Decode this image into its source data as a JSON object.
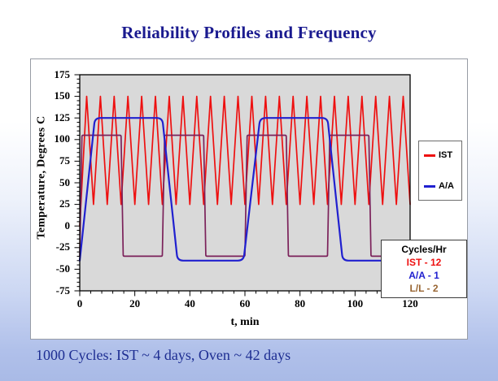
{
  "slide": {
    "title": "Reliability Profiles and Frequency",
    "footer": "1000 Cycles: IST ~ 4 days, Oven ~ 42 days",
    "colors": {
      "title_text": "#1a1a8f",
      "footer_text": "#1d2d92",
      "background_bottom": "#a9bae6",
      "background_top": "#ffffff"
    }
  },
  "chart_data": {
    "type": "line",
    "title": "",
    "xlabel": "t, min",
    "ylabel": "Temperature, Degrees C",
    "xlim": [
      0,
      120
    ],
    "ylim": [
      -75,
      175
    ],
    "x_ticks": [
      0,
      20,
      40,
      60,
      80,
      100,
      120
    ],
    "x_tick_labels": [
      "0",
      "20",
      "40",
      "60",
      "80",
      "100",
      "120"
    ],
    "y_ticks": [
      175,
      150,
      125,
      100,
      75,
      50,
      25,
      0,
      -25,
      -50,
      -75
    ],
    "y_tick_labels": [
      "175",
      "150",
      "125",
      "100",
      "75",
      "50",
      "25",
      "0",
      "-25",
      "-50",
      "-75"
    ],
    "x_minor_step": 4,
    "y_minor_step": 5,
    "grid": "off",
    "plot_bg": "#d9d9d9",
    "legend_position": "right-outside",
    "series": [
      {
        "name": "IST",
        "color": "#ee1010",
        "width": 1.7,
        "corner_radius": 0,
        "points": [
          [
            0,
            0
          ],
          [
            2.5,
            150
          ],
          [
            5,
            25
          ],
          [
            7.5,
            150
          ],
          [
            10,
            25
          ],
          [
            12.5,
            150
          ],
          [
            15,
            25
          ],
          [
            17.5,
            150
          ],
          [
            20,
            25
          ],
          [
            22.5,
            150
          ],
          [
            25,
            25
          ],
          [
            27.5,
            150
          ],
          [
            30,
            25
          ],
          [
            32.5,
            150
          ],
          [
            35,
            25
          ],
          [
            37.5,
            150
          ],
          [
            40,
            25
          ],
          [
            42.5,
            150
          ],
          [
            45,
            25
          ],
          [
            47.5,
            150
          ],
          [
            50,
            25
          ],
          [
            52.5,
            150
          ],
          [
            55,
            25
          ],
          [
            57.5,
            150
          ],
          [
            60,
            25
          ],
          [
            62.5,
            150
          ],
          [
            65,
            25
          ],
          [
            67.5,
            150
          ],
          [
            70,
            25
          ],
          [
            72.5,
            150
          ],
          [
            75,
            25
          ],
          [
            77.5,
            150
          ],
          [
            80,
            25
          ],
          [
            82.5,
            150
          ],
          [
            85,
            25
          ],
          [
            87.5,
            150
          ],
          [
            90,
            25
          ],
          [
            92.5,
            150
          ],
          [
            95,
            25
          ],
          [
            97.5,
            150
          ],
          [
            100,
            25
          ],
          [
            102.5,
            150
          ],
          [
            105,
            25
          ],
          [
            107.5,
            150
          ],
          [
            110,
            25
          ],
          [
            112.5,
            150
          ],
          [
            115,
            25
          ],
          [
            117.5,
            150
          ],
          [
            120,
            25
          ]
        ]
      },
      {
        "name": "L/L",
        "color": "#7b215a",
        "width": 1.7,
        "corner_radius": 1.5,
        "points": [
          [
            0,
            -35
          ],
          [
            0.8,
            105
          ],
          [
            15,
            105
          ],
          [
            15.8,
            -35
          ],
          [
            30,
            -35
          ],
          [
            30.8,
            105
          ],
          [
            45,
            105
          ],
          [
            45.8,
            -35
          ],
          [
            60,
            -35
          ],
          [
            60.8,
            105
          ],
          [
            75,
            105
          ],
          [
            75.8,
            -35
          ],
          [
            90,
            -35
          ],
          [
            90.8,
            105
          ],
          [
            105,
            105
          ],
          [
            105.8,
            -35
          ],
          [
            120,
            -35
          ]
        ]
      },
      {
        "name": "A/A",
        "color": "#2020cf",
        "width": 2.2,
        "corner_radius": 7,
        "points": [
          [
            0,
            -40
          ],
          [
            5.5,
            125
          ],
          [
            30,
            125
          ],
          [
            35.5,
            -40
          ],
          [
            59.5,
            -40
          ],
          [
            65.5,
            125
          ],
          [
            90,
            125
          ],
          [
            95.5,
            -40
          ],
          [
            120,
            -40
          ]
        ]
      }
    ],
    "legend": {
      "entries": [
        {
          "label": "IST",
          "color": "#ee1010"
        },
        {
          "label": "A/A",
          "color": "#2020cf"
        }
      ]
    },
    "cycles_box": {
      "title": "Cycles/Hr",
      "title_color": "#000000",
      "entries": [
        {
          "label": "IST - 12",
          "color": "#ee1010"
        },
        {
          "label": "A/A - 1",
          "color": "#2020cf"
        },
        {
          "label": "L/L - 2",
          "color": "#996633"
        }
      ]
    }
  }
}
